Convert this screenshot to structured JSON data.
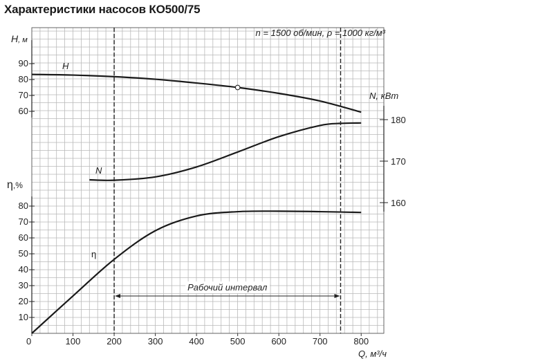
{
  "title": "Характеристики насосов КО500/75",
  "chart_data": {
    "type": "line",
    "title": "Характеристики насосов КО500/75",
    "conditions": "n = 1500 об/мин, ρ = 1000 кг/м³",
    "xlabel": "Q, м³/ч",
    "xlim": [
      0,
      900
    ],
    "x_ticks": [
      0,
      100,
      200,
      300,
      400,
      500,
      600,
      700,
      800
    ],
    "grid": true,
    "series": [
      {
        "name": "H",
        "axis": "H, м",
        "ylim": [
          50,
          95
        ],
        "y_ticks": [
          60,
          70,
          80,
          90
        ],
        "x": [
          0,
          100,
          200,
          300,
          400,
          500,
          600,
          700,
          800
        ],
        "values": [
          83.2,
          82.8,
          81.8,
          80.2,
          77.8,
          75.0,
          71.3,
          66.5,
          59.5
        ],
        "marker": {
          "x": 500,
          "y": 75
        }
      },
      {
        "name": "N",
        "axis": "N, кВт",
        "ylim": [
          158,
          183
        ],
        "y_ticks": [
          160,
          170,
          180
        ],
        "x": [
          140,
          200,
          300,
          400,
          500,
          600,
          700,
          750,
          800
        ],
        "values": [
          165.5,
          165.4,
          166.2,
          168.6,
          172.2,
          175.9,
          178.6,
          179.1,
          179.2
        ]
      },
      {
        "name": "η",
        "axis": "η, %",
        "ylim": [
          0,
          85
        ],
        "y_ticks": [
          10,
          20,
          30,
          40,
          50,
          60,
          70,
          80
        ],
        "x": [
          0,
          100,
          200,
          300,
          400,
          500,
          600,
          700,
          800
        ],
        "values": [
          0,
          23.5,
          46.5,
          64.5,
          73.8,
          76.5,
          76.8,
          76.5,
          76.0
        ]
      }
    ],
    "vertical_lines": [
      200,
      750
    ],
    "annotation": {
      "text": "Рабочий интервал",
      "from": 200,
      "to": 750
    }
  }
}
